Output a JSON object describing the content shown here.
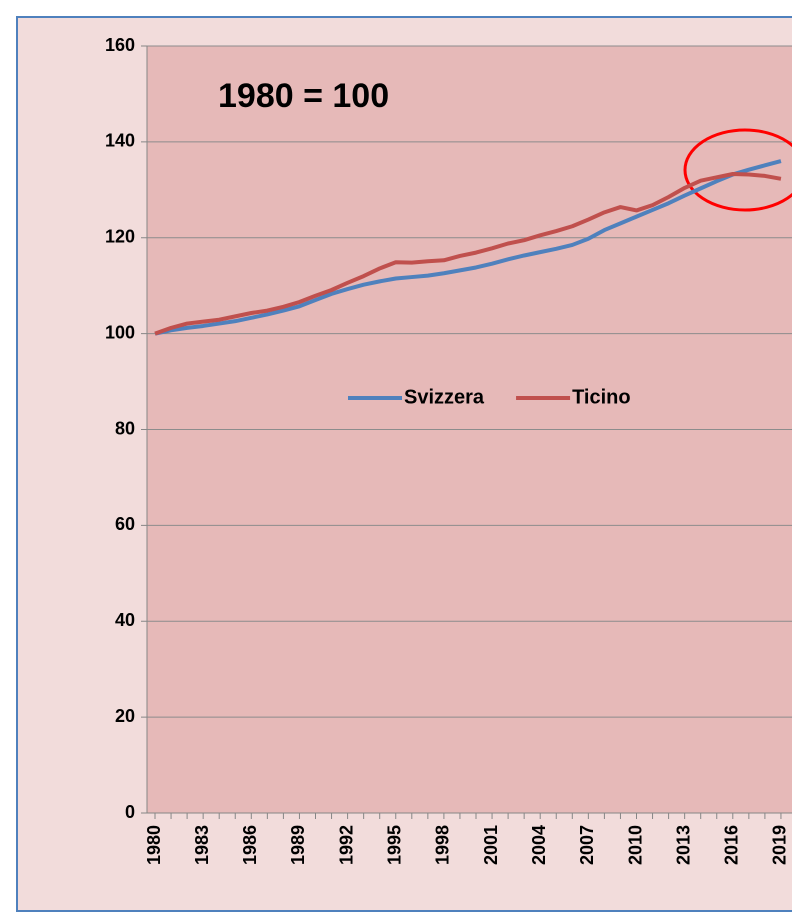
{
  "chart_data": {
    "type": "line",
    "annotation": "1980 = 100",
    "categories": [
      "1980",
      null,
      null,
      "1983",
      null,
      null,
      "1986",
      null,
      null,
      "1989",
      null,
      null,
      "1992",
      null,
      null,
      "1995",
      null,
      null,
      "1998",
      null,
      null,
      "2001",
      null,
      null,
      "2004",
      null,
      null,
      "2007",
      null,
      null,
      "2010",
      null,
      null,
      "2013",
      null,
      null,
      "2016",
      null,
      null,
      "2019"
    ],
    "series": [
      {
        "name": "Svizzera",
        "color": "#4f81bd",
        "values": [
          100,
          100.7,
          101.2,
          101.6,
          102.1,
          102.6,
          103.3,
          104,
          104.8,
          105.7,
          107,
          108.3,
          109.3,
          110.2,
          110.9,
          111.5,
          111.8,
          112.1,
          112.6,
          113.2,
          113.8,
          114.6,
          115.5,
          116.3,
          117,
          117.7,
          118.5,
          119.8,
          121.6,
          123,
          124.4,
          125.8,
          127.2,
          128.8,
          130.3,
          131.8,
          133.2,
          134.2,
          135.1,
          136
        ]
      },
      {
        "name": "Ticino",
        "color": "#c0504d",
        "values": [
          100,
          101.2,
          102.1,
          102.5,
          102.9,
          103.6,
          104.3,
          104.8,
          105.6,
          106.6,
          107.9,
          109.1,
          110.6,
          112,
          113.6,
          114.9,
          114.8,
          115.1,
          115.3,
          116.2,
          116.9,
          117.8,
          118.8,
          119.5,
          120.5,
          121.4,
          122.4,
          123.8,
          125.3,
          126.4,
          125.7,
          126.8,
          128.5,
          130.4,
          131.9,
          132.6,
          133.3,
          133.2,
          132.9,
          132.3
        ]
      }
    ],
    "ylim": [
      0,
      160
    ],
    "yticks": [
      0,
      20,
      40,
      60,
      80,
      100,
      120,
      140,
      160
    ],
    "grid": true,
    "legend": "center"
  }
}
